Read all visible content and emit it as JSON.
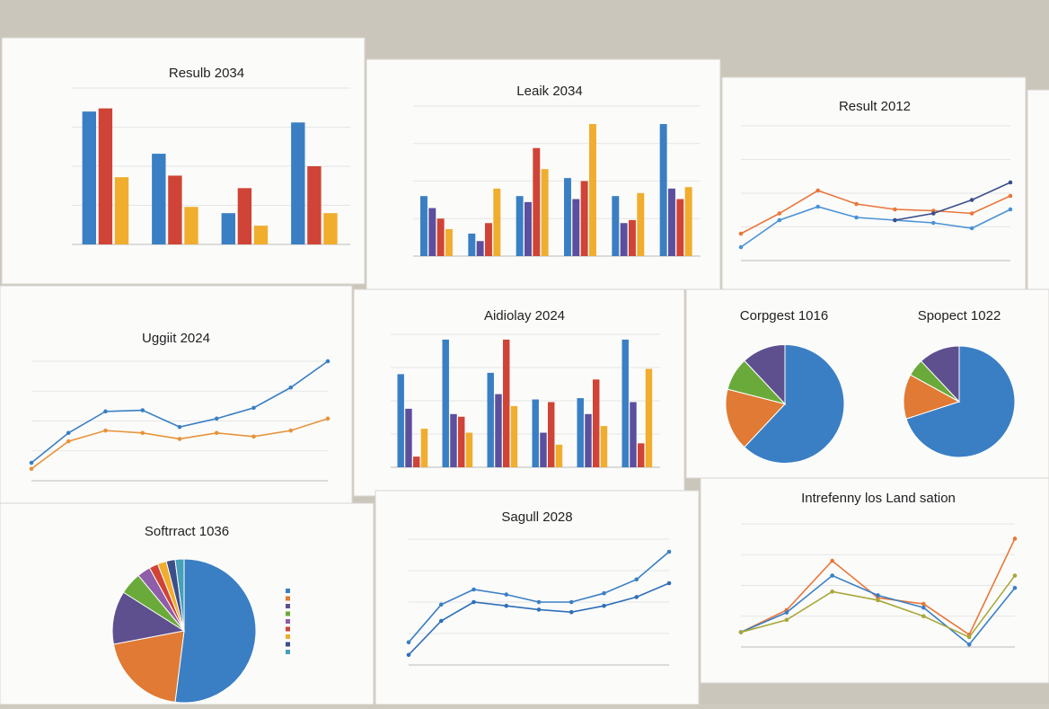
{
  "chart_data": [
    {
      "type": "bar",
      "title": "Resulb 2034",
      "ylim": [
        0,
        100
      ],
      "series": [
        {
          "color": "#3a7fc4",
          "values": [
            85,
            58,
            20,
            78
          ]
        },
        {
          "color": "#cf4436",
          "values": [
            87,
            44,
            36,
            50
          ]
        },
        {
          "color": "#f0ad2e",
          "values": [
            43,
            24,
            12,
            20
          ]
        }
      ]
    },
    {
      "type": "bar",
      "title": "Leaik 2034",
      "ylim": [
        0,
        100
      ],
      "series": [
        {
          "color": "#3a7fc4",
          "values": [
            40,
            15,
            40,
            52,
            40,
            88
          ]
        },
        {
          "color": "#5b4f9e",
          "values": [
            32,
            10,
            36,
            38,
            22,
            45
          ]
        },
        {
          "color": "#cf4436",
          "values": [
            25,
            22,
            72,
            50,
            24,
            38
          ]
        },
        {
          "color": "#f0ad2e",
          "values": [
            18,
            45,
            58,
            88,
            42,
            46
          ]
        }
      ]
    },
    {
      "type": "line",
      "title": "Result 2012",
      "ylim": [
        0,
        100
      ],
      "series": [
        {
          "color": "#e8773a",
          "values": [
            20,
            35,
            52,
            42,
            38,
            37,
            35,
            48
          ]
        },
        {
          "color": "#4b93d6",
          "values": [
            10,
            30,
            40,
            32,
            30,
            28,
            24,
            38
          ]
        },
        {
          "color": "#3b4f8a",
          "values": [
            null,
            null,
            null,
            null,
            30,
            35,
            45,
            58
          ]
        }
      ]
    },
    {
      "type": "line",
      "title": "Uggiit 2024",
      "ylim": [
        0,
        100
      ],
      "series": [
        {
          "color": "#3a7fc4",
          "values": [
            15,
            40,
            58,
            59,
            45,
            52,
            61,
            78,
            100
          ]
        },
        {
          "color": "#e8933a",
          "values": [
            10,
            33,
            42,
            40,
            35,
            40,
            37,
            42,
            52
          ]
        }
      ]
    },
    {
      "type": "bar",
      "title": "Aidiolay 2024",
      "ylim": [
        0,
        100
      ],
      "series": [
        {
          "color": "#3a7fc4",
          "values": [
            70,
            96,
            71,
            51,
            52,
            96
          ]
        },
        {
          "color": "#5b4f9e",
          "values": [
            44,
            40,
            55,
            26,
            40,
            49
          ]
        },
        {
          "color": "#cf4436",
          "values": [
            8,
            38,
            96,
            49,
            66,
            18
          ]
        },
        {
          "color": "#f0ad2e",
          "values": [
            29,
            26,
            46,
            17,
            31,
            74
          ]
        }
      ]
    },
    {
      "type": "pie",
      "title": "Corpgest 1016",
      "values": [
        62,
        17,
        9,
        12
      ],
      "colors": [
        "#3a7fc4",
        "#e07a34",
        "#6aaa3a",
        "#5e4f8f"
      ]
    },
    {
      "type": "pie",
      "title": "Spopect 1022",
      "values": [
        70,
        13,
        5,
        12
      ],
      "colors": [
        "#3a7fc4",
        "#e07a34",
        "#6aaa3a",
        "#5e4f8f"
      ]
    },
    {
      "type": "pie",
      "title": "Softrract 1036",
      "values": [
        52,
        20,
        12,
        5,
        3,
        2,
        2,
        2,
        2
      ],
      "colors": [
        "#3a7fc4",
        "#e07a34",
        "#5e4f8f",
        "#6aaa3a",
        "#8e5ea8",
        "#cf4436",
        "#f0ad2e",
        "#3b4f8a",
        "#46a0b8"
      ]
    },
    {
      "type": "line",
      "title": "Sagull 2028",
      "ylim": [
        0,
        100
      ],
      "series": [
        {
          "color": "#3a7fc4",
          "values": [
            18,
            48,
            60,
            56,
            50,
            50,
            57,
            68,
            90
          ]
        },
        {
          "color": "#2f6fb8",
          "values": [
            8,
            35,
            50,
            47,
            44,
            42,
            47,
            54,
            65
          ]
        }
      ]
    },
    {
      "type": "line",
      "title": "Intrefenny los Land sation",
      "ylim": [
        0,
        100
      ],
      "series": [
        {
          "color": "#e8773a",
          "values": [
            12,
            30,
            70,
            40,
            35,
            10,
            88
          ]
        },
        {
          "color": "#3a7fc4",
          "values": [
            12,
            28,
            58,
            42,
            32,
            2,
            48
          ]
        },
        {
          "color": "#a8a83a",
          "values": [
            12,
            22,
            45,
            38,
            25,
            8,
            58
          ]
        }
      ]
    }
  ]
}
